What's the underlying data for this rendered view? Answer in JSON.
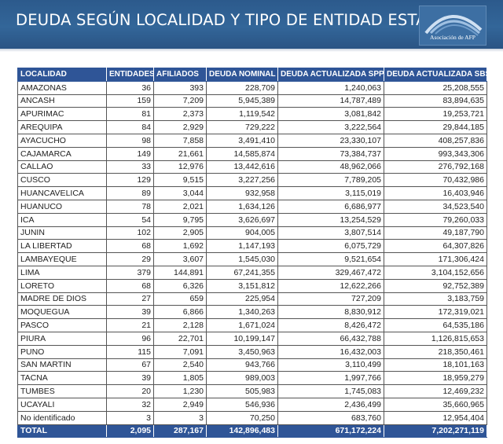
{
  "header": {
    "title": "DEUDA SEGÚN LOCALIDAD Y TIPO DE ENTIDAD ESTATAL",
    "logo_text": "Asociación de AFP"
  },
  "colors": {
    "banner": "#336699",
    "table_header": "#2f5597",
    "header_text": "#ffffff"
  },
  "table": {
    "columns": [
      "LOCALIDAD",
      "ENTIDADES",
      "AFILIADOS",
      "DEUDA NOMINAL",
      "DEUDA ACTUALIZADA SPP",
      "DEUDA ACTUALIZADA SBS"
    ],
    "rows": [
      [
        "AMAZONAS",
        "36",
        "393",
        "228,709",
        "1,240,063",
        "25,208,555"
      ],
      [
        "ANCASH",
        "159",
        "7,209",
        "5,945,389",
        "14,787,489",
        "83,894,635"
      ],
      [
        "APURIMAC",
        "81",
        "2,373",
        "1,119,542",
        "3,081,842",
        "19,253,721"
      ],
      [
        "AREQUIPA",
        "84",
        "2,929",
        "729,222",
        "3,222,564",
        "29,844,185"
      ],
      [
        "AYACUCHO",
        "98",
        "7,858",
        "3,491,410",
        "23,330,107",
        "408,257,836"
      ],
      [
        "CAJAMARCA",
        "149",
        "21,661",
        "14,585,874",
        "73,384,737",
        "993,343,306"
      ],
      [
        "CALLAO",
        "33",
        "12,976",
        "13,442,616",
        "48,962,066",
        "276,792,168"
      ],
      [
        "CUSCO",
        "129",
        "9,515",
        "3,227,256",
        "7,789,205",
        "70,432,986"
      ],
      [
        "HUANCAVELICA",
        "89",
        "3,044",
        "932,958",
        "3,115,019",
        "16,403,946"
      ],
      [
        "HUANUCO",
        "78",
        "2,021",
        "1,634,126",
        "6,686,977",
        "34,523,540"
      ],
      [
        "ICA",
        "54",
        "9,795",
        "3,626,697",
        "13,254,529",
        "79,260,033"
      ],
      [
        "JUNIN",
        "102",
        "2,905",
        "904,005",
        "3,807,514",
        "49,187,790"
      ],
      [
        "LA LIBERTAD",
        "68",
        "1,692",
        "1,147,193",
        "6,075,729",
        "64,307,826"
      ],
      [
        "LAMBAYEQUE",
        "29",
        "3,607",
        "1,545,030",
        "9,521,654",
        "171,306,424"
      ],
      [
        "LIMA",
        "379",
        "144,891",
        "67,241,355",
        "329,467,472",
        "3,104,152,656"
      ],
      [
        "LORETO",
        "68",
        "6,326",
        "3,151,812",
        "12,622,266",
        "92,752,389"
      ],
      [
        "MADRE DE DIOS",
        "27",
        "659",
        "225,954",
        "727,209",
        "3,183,759"
      ],
      [
        "MOQUEGUA",
        "39",
        "6,866",
        "1,340,263",
        "8,830,912",
        "172,319,021"
      ],
      [
        "PASCO",
        "21",
        "2,128",
        "1,671,024",
        "8,426,472",
        "64,535,186"
      ],
      [
        "PIURA",
        "96",
        "22,701",
        "10,199,147",
        "66,432,788",
        "1,126,815,653"
      ],
      [
        "PUNO",
        "115",
        "7,091",
        "3,450,963",
        "16,432,003",
        "218,350,461"
      ],
      [
        "SAN MARTIN",
        "67",
        "2,540",
        "943,766",
        "3,110,499",
        "18,101,163"
      ],
      [
        "TACNA",
        "39",
        "1,805",
        "989,003",
        "1,997,766",
        "18,959,279"
      ],
      [
        "TUMBES",
        "20",
        "1,230",
        "505,983",
        "1,745,083",
        "12,469,232"
      ],
      [
        "UCAYALI",
        "32",
        "2,949",
        "546,936",
        "2,436,499",
        "35,660,965"
      ],
      [
        "No identificado",
        "3",
        "3",
        "70,250",
        "683,760",
        "12,954,404"
      ]
    ],
    "total": [
      "TOTAL",
      "2,095",
      "287,167",
      "142,896,483",
      "671,172,224",
      "7,202,271,119"
    ]
  }
}
